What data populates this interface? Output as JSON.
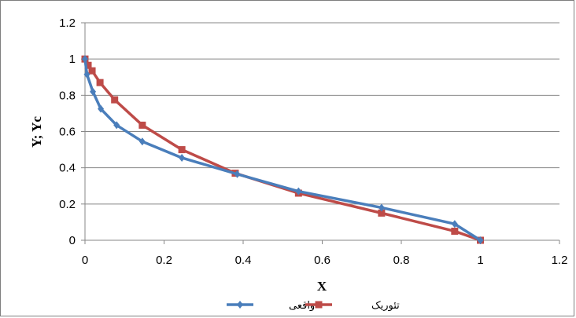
{
  "chart_data": {
    "type": "line",
    "xlabel": "X",
    "ylabel": "Y; Yc",
    "xlim": [
      0,
      1.2
    ],
    "ylim": [
      0,
      1.2
    ],
    "xticks": [
      "0",
      "0.2",
      "0.4",
      "0.6",
      "0.8",
      "1",
      "1.2"
    ],
    "yticks": [
      "0",
      "0.2",
      "0.4",
      "0.6",
      "0.8",
      "1",
      "1.2"
    ],
    "grid": "horizontal",
    "legend": "bottom",
    "series": [
      {
        "name": "واقعی",
        "color": "#4a7ebb",
        "marker": "diamond",
        "x": [
          0,
          0.005,
          0.02,
          0.04,
          0.08,
          0.145,
          0.245,
          0.385,
          0.54,
          0.75,
          0.935,
          1.0
        ],
        "y": [
          1.0,
          0.915,
          0.82,
          0.725,
          0.635,
          0.545,
          0.455,
          0.365,
          0.27,
          0.18,
          0.09,
          0.0
        ]
      },
      {
        "name": "تئوریک",
        "color": "#be4b48",
        "marker": "square",
        "x": [
          0,
          0.008,
          0.018,
          0.038,
          0.075,
          0.145,
          0.245,
          0.38,
          0.54,
          0.75,
          0.935,
          1.0
        ],
        "y": [
          1.0,
          0.965,
          0.935,
          0.87,
          0.775,
          0.635,
          0.5,
          0.37,
          0.26,
          0.15,
          0.05,
          0.0
        ]
      }
    ]
  }
}
